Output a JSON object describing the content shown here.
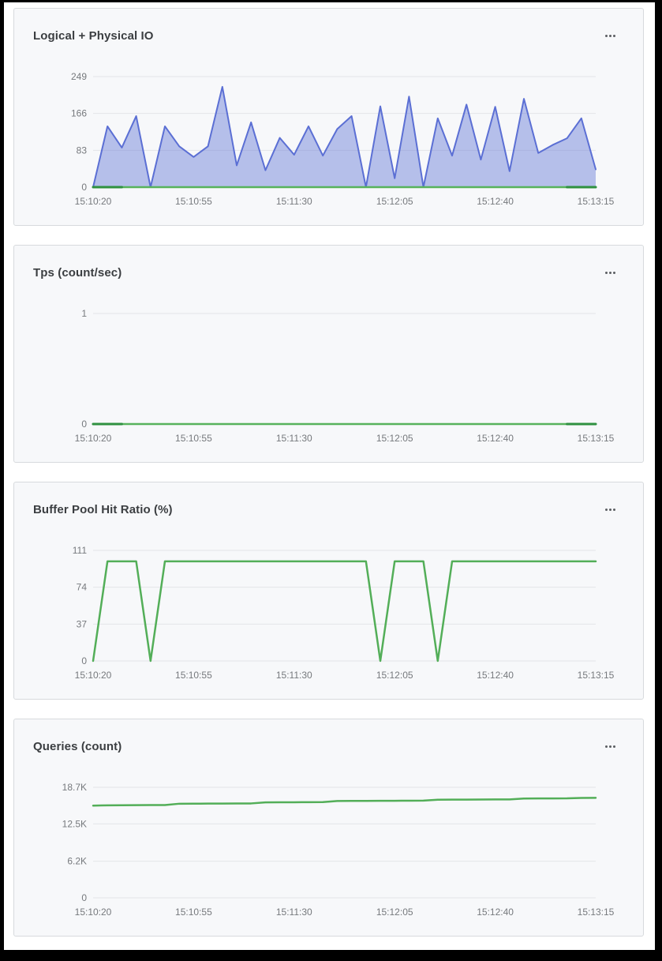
{
  "icons": {
    "panel_menu": "ellipsis-horizontal"
  },
  "colors": {
    "card_background": "#f7f8fa",
    "card_border": "#d7dadd",
    "page_background": "#ffffff",
    "outer_frame": "#000000",
    "gridline": "#e3e5e8",
    "tick_label": "#76797d",
    "title": "#3b3e41",
    "blue_line": "#5b6fd4",
    "green_line": "#57b25c",
    "dark_green_line": "#2f9140"
  },
  "x_axis": {
    "tick_labels": [
      "15:10:20",
      "15:10:55",
      "15:11:30",
      "15:12:05",
      "15:12:40",
      "15:13:15"
    ]
  },
  "panels": [
    {
      "title": "Logical + Physical IO",
      "menu_label": "ellipsis-menu",
      "chart_data": {
        "type": "area",
        "title": "Logical + Physical IO",
        "xlabel": "",
        "ylabel": "",
        "grid": true,
        "legend": "none",
        "x_tick_labels": [
          "15:10:20",
          "15:10:55",
          "15:11:30",
          "15:12:05",
          "15:12:40",
          "15:13:15"
        ],
        "y_ticks": [
          0,
          83,
          166,
          249
        ],
        "y_tick_labels": [
          "0",
          "83",
          "166",
          "249"
        ],
        "ylim": [
          0,
          249
        ],
        "series": [
          {
            "name": "io-area",
            "type": "area",
            "color": "#5b6fd4",
            "fill_opacity": 0.42,
            "stroke_width": 2,
            "values": [
              0,
              137,
              89,
              160,
              0,
              137,
              92,
              68,
              92,
              226,
              49,
              146,
              38,
              111,
              73,
              137,
              71,
              131,
              160,
              0,
              182,
              20,
              204,
              0,
              155,
              71,
              186,
              62,
              181,
              36,
              199,
              77,
              95,
              110,
              155,
              40
            ]
          },
          {
            "name": "io-baseline",
            "type": "line",
            "color": "#57b25c",
            "stroke_width": 2.5,
            "values": [
              0,
              0,
              0,
              0,
              0,
              0,
              0,
              0,
              0,
              0,
              0,
              0,
              0,
              0,
              0,
              0,
              0,
              0,
              0,
              0,
              0,
              0,
              0,
              0,
              0,
              0,
              0,
              0,
              0,
              0,
              0,
              0,
              0,
              0,
              0,
              0
            ]
          },
          {
            "name": "io-baseline-dark",
            "type": "line",
            "color": "#2f9140",
            "stroke_width": 3,
            "values": [
              0,
              0,
              0,
              null,
              null,
              null,
              null,
              null,
              null,
              null,
              null,
              null,
              null,
              null,
              null,
              null,
              null,
              null,
              null,
              null,
              null,
              null,
              null,
              null,
              null,
              null,
              null,
              null,
              null,
              null,
              null,
              null,
              null,
              0,
              0,
              0
            ]
          }
        ]
      }
    },
    {
      "title": "Tps (count/sec)",
      "menu_label": "ellipsis-menu",
      "chart_data": {
        "type": "line",
        "title": "Tps (count/sec)",
        "xlabel": "",
        "ylabel": "",
        "grid": true,
        "legend": "none",
        "x_tick_labels": [
          "15:10:20",
          "15:10:55",
          "15:11:30",
          "15:12:05",
          "15:12:40",
          "15:13:15"
        ],
        "y_ticks": [
          0,
          1
        ],
        "y_tick_labels": [
          "0",
          "1"
        ],
        "ylim": [
          0,
          1
        ],
        "series": [
          {
            "name": "tps",
            "type": "line",
            "color": "#57b25c",
            "stroke_width": 2.5,
            "values": [
              0,
              0,
              0,
              0,
              0,
              0,
              0,
              0,
              0,
              0,
              0,
              0,
              0,
              0,
              0,
              0,
              0,
              0,
              0,
              0,
              0,
              0,
              0,
              0,
              0,
              0,
              0,
              0,
              0,
              0,
              0,
              0,
              0,
              0,
              0,
              0
            ]
          },
          {
            "name": "tps-dark",
            "type": "line",
            "color": "#2f9140",
            "stroke_width": 3,
            "values": [
              0,
              0,
              0,
              null,
              null,
              null,
              null,
              null,
              null,
              null,
              null,
              null,
              null,
              null,
              null,
              null,
              null,
              null,
              null,
              null,
              null,
              null,
              null,
              null,
              null,
              null,
              null,
              null,
              null,
              null,
              null,
              null,
              null,
              0,
              0,
              0
            ]
          }
        ]
      }
    },
    {
      "title": "Buffer Pool Hit Ratio (%)",
      "menu_label": "ellipsis-menu",
      "chart_data": {
        "type": "line",
        "title": "Buffer Pool Hit Ratio (%)",
        "xlabel": "",
        "ylabel": "",
        "grid": true,
        "legend": "none",
        "x_tick_labels": [
          "15:10:20",
          "15:10:55",
          "15:11:30",
          "15:12:05",
          "15:12:40",
          "15:13:15"
        ],
        "y_ticks": [
          0,
          37,
          74,
          111
        ],
        "y_tick_labels": [
          "0",
          "37",
          "74",
          "111"
        ],
        "ylim": [
          0,
          111
        ],
        "series": [
          {
            "name": "hit-ratio",
            "type": "line",
            "color": "#53ae58",
            "stroke_width": 2.5,
            "values": [
              0,
              100,
              100,
              100,
              0,
              100,
              100,
              100,
              100,
              100,
              100,
              100,
              100,
              100,
              100,
              100,
              100,
              100,
              100,
              100,
              0,
              100,
              100,
              100,
              0,
              100,
              100,
              100,
              100,
              100,
              100,
              100,
              100,
              100,
              100,
              100
            ]
          }
        ]
      }
    },
    {
      "title": "Queries (count)",
      "menu_label": "ellipsis-menu",
      "chart_data": {
        "type": "line",
        "title": "Queries (count)",
        "xlabel": "",
        "ylabel": "",
        "grid": true,
        "legend": "none",
        "x_tick_labels": [
          "15:10:20",
          "15:10:55",
          "15:11:30",
          "15:12:05",
          "15:12:40",
          "15:13:15"
        ],
        "y_ticks": [
          0,
          6200,
          12500,
          18700
        ],
        "y_tick_labels": [
          "0",
          "6.2K",
          "12.5K",
          "18.7K"
        ],
        "ylim": [
          0,
          18700
        ],
        "series": [
          {
            "name": "queries",
            "type": "line",
            "color": "#53ae58",
            "stroke_width": 2.5,
            "values": [
              15600,
              15640,
              15660,
              15680,
              15690,
              15700,
              15920,
              15930,
              15940,
              15950,
              15960,
              15970,
              16150,
              16160,
              16170,
              16180,
              16190,
              16380,
              16390,
              16400,
              16410,
              16420,
              16430,
              16440,
              16600,
              16610,
              16620,
              16630,
              16640,
              16650,
              16800,
              16810,
              16820,
              16830,
              16900,
              16920
            ]
          }
        ]
      }
    }
  ]
}
